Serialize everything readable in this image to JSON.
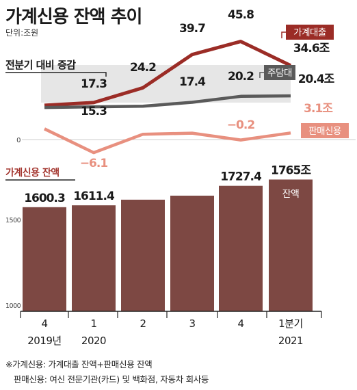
{
  "title": "가계신용 잔액 추이",
  "unit": "단위:조원",
  "colors": {
    "household": "#9b2c26",
    "mortgage": "#5a5a5a",
    "sales": "#e8907f",
    "balance_bar": "#7d4843",
    "balance_label": "#a3352e",
    "band": "#e6e6e6"
  },
  "chart_data": [
    {
      "type": "line",
      "title": "전분기 대비 증감",
      "categories": [
        "4",
        "1",
        "2",
        "3",
        "4",
        "1분기"
      ],
      "series": [
        {
          "name": "가계대출",
          "values": [
            null,
            17.3,
            24.2,
            39.7,
            45.8,
            34.6
          ],
          "labels": [
            "",
            "17.3",
            "24.2",
            "39.7",
            "45.8",
            "34.6조"
          ]
        },
        {
          "name": "주담대",
          "values": [
            null,
            15.3,
            null,
            17.4,
            20.2,
            20.4
          ],
          "labels": [
            "",
            "15.3",
            "",
            "17.4",
            "20.2",
            "20.4조"
          ]
        },
        {
          "name": "판매신용",
          "values": [
            null,
            -6.1,
            null,
            null,
            -0.2,
            3.1
          ],
          "labels": [
            "",
            "−6.1",
            "",
            "",
            "−0.2",
            "3.1조"
          ]
        }
      ],
      "zero_label": "0"
    },
    {
      "type": "bar",
      "title": "가계신용 잔액",
      "categories": [
        "4",
        "1",
        "2",
        "3",
        "4",
        "1분기"
      ],
      "years": [
        "2019년",
        "2020",
        "",
        "",
        "",
        "2021"
      ],
      "values": [
        1600.3,
        1611.4,
        null,
        null,
        1727.4,
        1765
      ],
      "labels": [
        "1600.3",
        "1611.4",
        "",
        "",
        "1727.4",
        "1765조"
      ],
      "last_bar_note": "잔액",
      "yticks": [
        "1500",
        "1000"
      ]
    }
  ],
  "footnote": {
    "line1": "※가계신용: 가계대출 잔액+판매신용 잔액",
    "line2": "판매신용: 여신 전문기관(카드) 및 백화점, 자동차 회사등"
  }
}
